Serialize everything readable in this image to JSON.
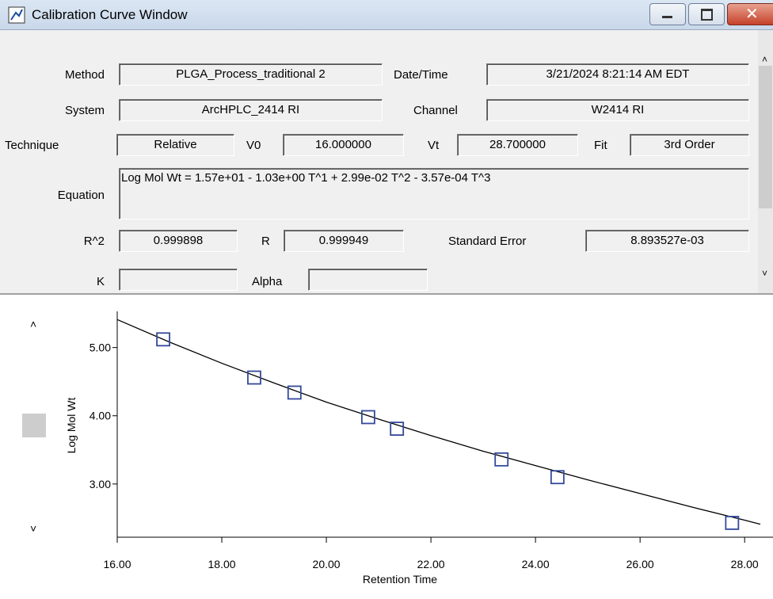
{
  "window": {
    "title": "Calibration Curve Window"
  },
  "form": {
    "method": {
      "label": "Method",
      "value": "PLGA_Process_traditional 2"
    },
    "datetime": {
      "label": "Date/Time",
      "value": "3/21/2024 8:21:14 AM EDT"
    },
    "system": {
      "label": "System",
      "value": "ArcHPLC_2414 RI"
    },
    "channel": {
      "label": "Channel",
      "value": "W2414 RI"
    },
    "technique": {
      "label": "Technique",
      "value": "Relative"
    },
    "v0": {
      "label": "V0",
      "value": "16.000000"
    },
    "vt": {
      "label": "Vt",
      "value": "28.700000"
    },
    "fit": {
      "label": "Fit",
      "value": "3rd Order"
    },
    "equation": {
      "label": "Equation",
      "value": "Log Mol Wt = 1.57e+01 - 1.03e+00 T^1 + 2.99e-02 T^2 - 3.57e-04 T^3"
    },
    "r2": {
      "label": "R^2",
      "value": "0.999898"
    },
    "r": {
      "label": "R",
      "value": "0.999949"
    },
    "std_error": {
      "label": "Standard Error",
      "value": "8.893527e-03"
    },
    "k": {
      "label": "K"
    },
    "alpha": {
      "label": "Alpha"
    }
  },
  "chart_data": {
    "type": "scatter",
    "x_label": "Retention Time",
    "y_label": "Log Mol Wt",
    "xlim": [
      16,
      28.3
    ],
    "ylim": [
      2.22,
      5.53
    ],
    "xticks": [
      {
        "value": 16,
        "label": "16.00"
      },
      {
        "value": 18,
        "label": "18.00"
      },
      {
        "value": 20,
        "label": "20.00"
      },
      {
        "value": 22,
        "label": "22.00"
      },
      {
        "value": 24,
        "label": "24.00"
      },
      {
        "value": 26,
        "label": "26.00"
      },
      {
        "value": 28,
        "label": "28.00"
      }
    ],
    "yticks": [
      {
        "value": 3,
        "label": "3.00"
      },
      {
        "value": 4,
        "label": "4.00"
      },
      {
        "value": 5,
        "label": "5.00"
      }
    ],
    "points": {
      "color": "#34499a",
      "x": [
        16.88,
        18.62,
        19.39,
        20.8,
        21.35,
        23.35,
        24.42,
        27.76
      ],
      "y": [
        5.12,
        4.56,
        4.34,
        3.98,
        3.81,
        3.36,
        3.1,
        2.43
      ]
    },
    "curve": {
      "color": "#000000",
      "x": [
        16,
        17,
        18,
        19,
        20,
        21,
        22,
        23,
        24,
        25,
        26,
        27,
        28,
        28.3
      ],
      "y": [
        5.41,
        5.08,
        4.77,
        4.48,
        4.2,
        3.95,
        3.71,
        3.48,
        3.27,
        3.06,
        2.86,
        2.66,
        2.47,
        2.41
      ]
    }
  }
}
